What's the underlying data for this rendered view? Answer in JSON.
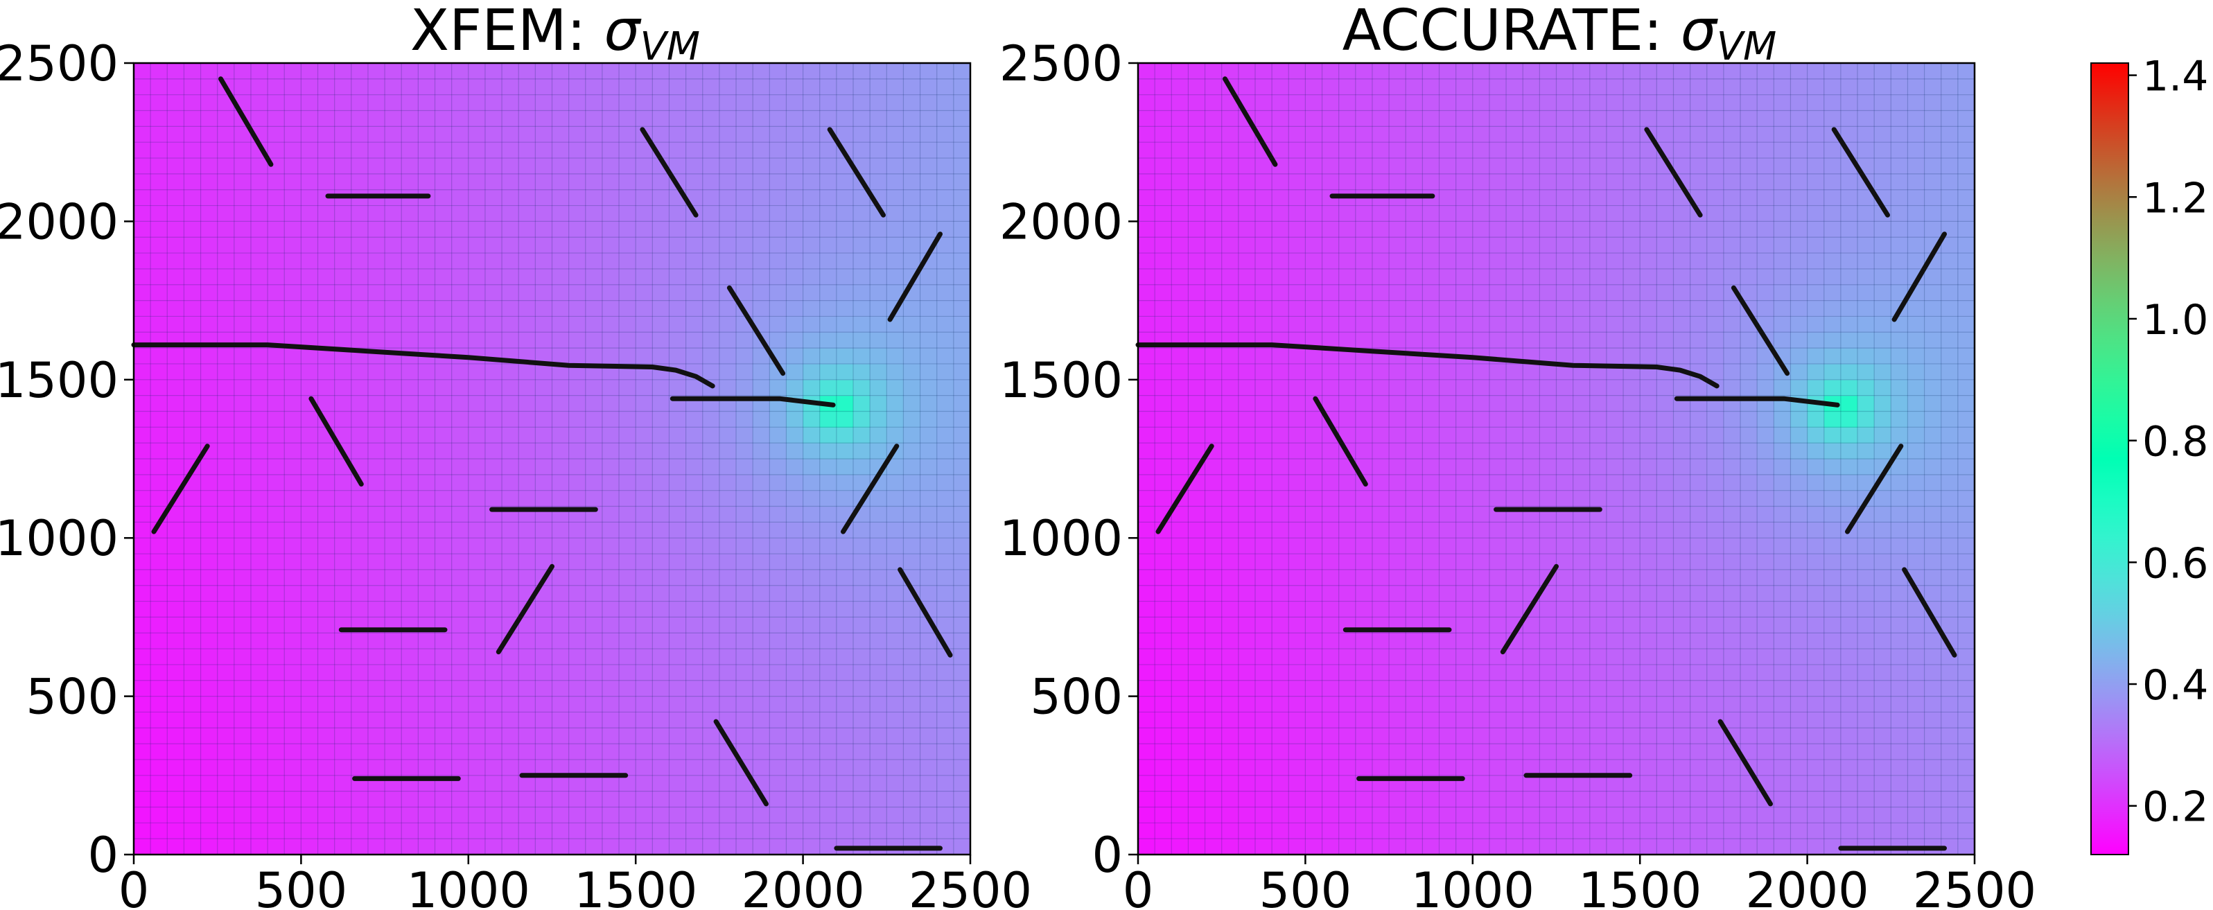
{
  "chart_data": [
    {
      "type": "heatmap",
      "title": "XFEM: ",
      "title_math": "σ",
      "title_sub": "VM",
      "xlabel": "",
      "ylabel": "",
      "xlim": [
        0,
        2500
      ],
      "ylim": [
        0,
        2500
      ],
      "xticks": [
        "0",
        "500",
        "1000",
        "1500",
        "2000",
        "2500"
      ],
      "yticks": [
        "0",
        "500",
        "1000",
        "1500",
        "2000",
        "2500"
      ],
      "hotspot": {
        "x": 2100,
        "y": 1410,
        "peak": 0.72
      },
      "cracks": [
        [
          [
            260,
            2450
          ],
          [
            410,
            2180
          ]
        ],
        [
          [
            580,
            2080
          ],
          [
            880,
            2080
          ]
        ],
        [
          [
            1520,
            2290
          ],
          [
            1680,
            2020
          ]
        ],
        [
          [
            2080,
            2290
          ],
          [
            2240,
            2020
          ]
        ],
        [
          [
            2410,
            1960
          ],
          [
            2260,
            1690
          ]
        ],
        [
          [
            1780,
            1790
          ],
          [
            1940,
            1520
          ]
        ],
        [
          [
            0,
            1610
          ],
          [
            400,
            1610
          ],
          [
            700,
            1590
          ],
          [
            1000,
            1570
          ],
          [
            1300,
            1545
          ],
          [
            1550,
            1540
          ],
          [
            1620,
            1530
          ],
          [
            1680,
            1510
          ],
          [
            1730,
            1480
          ]
        ],
        [
          [
            1610,
            1440
          ],
          [
            1930,
            1440
          ],
          [
            2090,
            1420
          ]
        ],
        [
          [
            530,
            1440
          ],
          [
            680,
            1170
          ]
        ],
        [
          [
            60,
            1020
          ],
          [
            220,
            1290
          ]
        ],
        [
          [
            1070,
            1090
          ],
          [
            1380,
            1090
          ]
        ],
        [
          [
            2120,
            1020
          ],
          [
            2280,
            1290
          ]
        ],
        [
          [
            620,
            710
          ],
          [
            930,
            710
          ]
        ],
        [
          [
            1090,
            640
          ],
          [
            1250,
            910
          ]
        ],
        [
          [
            2290,
            900
          ],
          [
            2440,
            630
          ]
        ],
        [
          [
            1740,
            420
          ],
          [
            1890,
            160
          ]
        ],
        [
          [
            660,
            240
          ],
          [
            970,
            240
          ]
        ],
        [
          [
            1160,
            250
          ],
          [
            1470,
            250
          ]
        ],
        [
          [
            2100,
            20
          ],
          [
            2410,
            20
          ]
        ]
      ]
    },
    {
      "type": "heatmap",
      "title": "ACCURATE: ",
      "title_math": "σ",
      "title_sub": "VM",
      "xlabel": "",
      "ylabel": "",
      "xlim": [
        0,
        2500
      ],
      "ylim": [
        0,
        2500
      ],
      "xticks": [
        "0",
        "500",
        "1000",
        "1500",
        "2000",
        "2500"
      ],
      "yticks": [
        "0",
        "500",
        "1000",
        "1500",
        "2000",
        "2500"
      ],
      "hotspot": {
        "x": 2100,
        "y": 1410,
        "peak": 0.72
      },
      "cracks": [
        [
          [
            260,
            2450
          ],
          [
            410,
            2180
          ]
        ],
        [
          [
            580,
            2080
          ],
          [
            880,
            2080
          ]
        ],
        [
          [
            1520,
            2290
          ],
          [
            1680,
            2020
          ]
        ],
        [
          [
            2080,
            2290
          ],
          [
            2240,
            2020
          ]
        ],
        [
          [
            2410,
            1960
          ],
          [
            2260,
            1690
          ]
        ],
        [
          [
            1780,
            1790
          ],
          [
            1940,
            1520
          ]
        ],
        [
          [
            0,
            1610
          ],
          [
            400,
            1610
          ],
          [
            700,
            1590
          ],
          [
            1000,
            1570
          ],
          [
            1300,
            1545
          ],
          [
            1550,
            1540
          ],
          [
            1620,
            1530
          ],
          [
            1680,
            1510
          ],
          [
            1730,
            1480
          ]
        ],
        [
          [
            1610,
            1440
          ],
          [
            1930,
            1440
          ],
          [
            2090,
            1420
          ]
        ],
        [
          [
            530,
            1440
          ],
          [
            680,
            1170
          ]
        ],
        [
          [
            60,
            1020
          ],
          [
            220,
            1290
          ]
        ],
        [
          [
            1070,
            1090
          ],
          [
            1380,
            1090
          ]
        ],
        [
          [
            2120,
            1020
          ],
          [
            2280,
            1290
          ]
        ],
        [
          [
            620,
            710
          ],
          [
            930,
            710
          ]
        ],
        [
          [
            1090,
            640
          ],
          [
            1250,
            910
          ]
        ],
        [
          [
            2290,
            900
          ],
          [
            2440,
            630
          ]
        ],
        [
          [
            1740,
            420
          ],
          [
            1890,
            160
          ]
        ],
        [
          [
            660,
            240
          ],
          [
            970,
            240
          ]
        ],
        [
          [
            1160,
            250
          ],
          [
            1470,
            250
          ]
        ],
        [
          [
            2100,
            20
          ],
          [
            2410,
            20
          ]
        ]
      ]
    }
  ],
  "colorbar": {
    "range": [
      0.12,
      1.42
    ],
    "ticks": [
      "0.2",
      "0.4",
      "0.6",
      "0.8",
      "1.0",
      "1.2",
      "1.4"
    ],
    "colormap": "rainbow"
  }
}
